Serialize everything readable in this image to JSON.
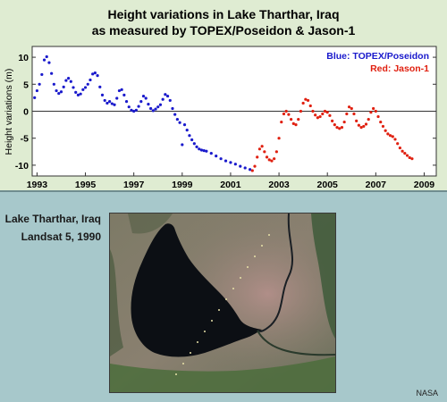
{
  "header": {
    "title_line1": "Height variations in Lake Tharthar, Iraq",
    "title_line2": "as measured by TOPEX/Poseidon & Jason-1"
  },
  "chart_data": {
    "type": "scatter",
    "ylabel": "Height variations (m)",
    "xlabel": "",
    "xlim": [
      1992.8,
      2009.5
    ],
    "ylim": [
      -12,
      12
    ],
    "x_ticks": [
      1993,
      1995,
      1997,
      1999,
      2001,
      2003,
      2005,
      2007,
      2009
    ],
    "y_ticks": [
      10,
      5,
      0,
      -5,
      -10
    ],
    "zero_line": true,
    "legend_position": "top-right",
    "series": [
      {
        "name": "Blue: TOPEX/Poseidon",
        "color": "#1a1acc",
        "points": [
          [
            1992.9,
            2.5
          ],
          [
            1993.0,
            3.8
          ],
          [
            1993.1,
            5.0
          ],
          [
            1993.2,
            6.8
          ],
          [
            1993.3,
            9.5
          ],
          [
            1993.4,
            10.1
          ],
          [
            1993.5,
            9.0
          ],
          [
            1993.6,
            7.0
          ],
          [
            1993.7,
            5.0
          ],
          [
            1993.8,
            3.8
          ],
          [
            1993.9,
            3.3
          ],
          [
            1994.0,
            3.6
          ],
          [
            1994.1,
            4.5
          ],
          [
            1994.2,
            5.7
          ],
          [
            1994.3,
            6.1
          ],
          [
            1994.4,
            5.5
          ],
          [
            1994.5,
            4.4
          ],
          [
            1994.6,
            3.5
          ],
          [
            1994.7,
            3.0
          ],
          [
            1994.8,
            3.2
          ],
          [
            1994.9,
            4.0
          ],
          [
            1995.0,
            4.4
          ],
          [
            1995.1,
            5.0
          ],
          [
            1995.2,
            5.8
          ],
          [
            1995.3,
            6.9
          ],
          [
            1995.4,
            7.1
          ],
          [
            1995.5,
            6.6
          ],
          [
            1995.6,
            4.5
          ],
          [
            1995.7,
            3.0
          ],
          [
            1995.8,
            2.0
          ],
          [
            1995.9,
            1.5
          ],
          [
            1996.0,
            1.8
          ],
          [
            1996.1,
            1.4
          ],
          [
            1996.2,
            1.2
          ],
          [
            1996.3,
            2.4
          ],
          [
            1996.4,
            3.8
          ],
          [
            1996.5,
            4.0
          ],
          [
            1996.6,
            3.0
          ],
          [
            1996.7,
            1.8
          ],
          [
            1996.8,
            0.8
          ],
          [
            1996.9,
            0.2
          ],
          [
            1997.0,
            0.0
          ],
          [
            1997.1,
            0.2
          ],
          [
            1997.2,
            0.9
          ],
          [
            1997.3,
            1.8
          ],
          [
            1997.4,
            2.8
          ],
          [
            1997.5,
            2.4
          ],
          [
            1997.6,
            1.3
          ],
          [
            1997.7,
            0.5
          ],
          [
            1997.8,
            0.1
          ],
          [
            1997.9,
            0.4
          ],
          [
            1998.0,
            0.8
          ],
          [
            1998.1,
            1.2
          ],
          [
            1998.2,
            2.2
          ],
          [
            1998.3,
            3.1
          ],
          [
            1998.4,
            2.8
          ],
          [
            1998.5,
            2.0
          ],
          [
            1998.6,
            0.5
          ],
          [
            1998.7,
            -0.6
          ],
          [
            1998.8,
            -1.5
          ],
          [
            1998.9,
            -2.1
          ],
          [
            1999.0,
            -6.2
          ],
          [
            1999.1,
            -2.5
          ],
          [
            1999.2,
            -3.5
          ],
          [
            1999.3,
            -4.5
          ],
          [
            1999.4,
            -5.3
          ],
          [
            1999.5,
            -6.0
          ],
          [
            1999.6,
            -6.6
          ],
          [
            1999.7,
            -7.0
          ],
          [
            1999.8,
            -7.2
          ],
          [
            1999.9,
            -7.3
          ],
          [
            2000.0,
            -7.4
          ],
          [
            2000.2,
            -7.8
          ],
          [
            2000.4,
            -8.3
          ],
          [
            2000.6,
            -8.8
          ],
          [
            2000.8,
            -9.2
          ],
          [
            2001.0,
            -9.5
          ],
          [
            2001.2,
            -9.8
          ],
          [
            2001.4,
            -10.2
          ],
          [
            2001.6,
            -10.5
          ],
          [
            2001.8,
            -10.8
          ]
        ]
      },
      {
        "name": "Red: Jason-1",
        "color": "#e02010",
        "points": [
          [
            2001.9,
            -11.0
          ],
          [
            2002.0,
            -10.2
          ],
          [
            2002.1,
            -8.5
          ],
          [
            2002.2,
            -7.0
          ],
          [
            2002.3,
            -6.5
          ],
          [
            2002.4,
            -7.5
          ],
          [
            2002.5,
            -8.5
          ],
          [
            2002.6,
            -9.0
          ],
          [
            2002.7,
            -9.2
          ],
          [
            2002.8,
            -8.8
          ],
          [
            2002.9,
            -7.5
          ],
          [
            2003.0,
            -5.0
          ],
          [
            2003.1,
            -2.0
          ],
          [
            2003.2,
            -0.5
          ],
          [
            2003.3,
            0.0
          ],
          [
            2003.4,
            -0.6
          ],
          [
            2003.5,
            -1.5
          ],
          [
            2003.6,
            -2.3
          ],
          [
            2003.7,
            -2.5
          ],
          [
            2003.8,
            -1.5
          ],
          [
            2003.9,
            0.0
          ],
          [
            2004.0,
            1.5
          ],
          [
            2004.1,
            2.2
          ],
          [
            2004.2,
            2.0
          ],
          [
            2004.3,
            1.0
          ],
          [
            2004.4,
            0.0
          ],
          [
            2004.5,
            -0.7
          ],
          [
            2004.6,
            -1.2
          ],
          [
            2004.7,
            -1.0
          ],
          [
            2004.8,
            -0.5
          ],
          [
            2004.9,
            0.0
          ],
          [
            2005.0,
            -0.2
          ],
          [
            2005.1,
            -0.8
          ],
          [
            2005.2,
            -1.8
          ],
          [
            2005.3,
            -2.5
          ],
          [
            2005.4,
            -3.0
          ],
          [
            2005.5,
            -3.2
          ],
          [
            2005.6,
            -3.0
          ],
          [
            2005.7,
            -2.0
          ],
          [
            2005.8,
            -0.5
          ],
          [
            2005.9,
            0.8
          ],
          [
            2006.0,
            0.5
          ],
          [
            2006.1,
            -0.5
          ],
          [
            2006.2,
            -1.8
          ],
          [
            2006.3,
            -2.6
          ],
          [
            2006.4,
            -3.0
          ],
          [
            2006.5,
            -2.8
          ],
          [
            2006.6,
            -2.4
          ],
          [
            2006.7,
            -1.5
          ],
          [
            2006.8,
            -0.2
          ],
          [
            2006.9,
            0.5
          ],
          [
            2007.0,
            0.0
          ],
          [
            2007.1,
            -1.0
          ],
          [
            2007.2,
            -2.0
          ],
          [
            2007.3,
            -2.8
          ],
          [
            2007.4,
            -3.6
          ],
          [
            2007.5,
            -4.2
          ],
          [
            2007.6,
            -4.5
          ],
          [
            2007.7,
            -4.7
          ],
          [
            2007.8,
            -5.2
          ],
          [
            2007.9,
            -6.0
          ],
          [
            2008.0,
            -6.8
          ],
          [
            2008.1,
            -7.4
          ],
          [
            2008.2,
            -7.8
          ],
          [
            2008.3,
            -8.2
          ],
          [
            2008.4,
            -8.6
          ],
          [
            2008.5,
            -8.8
          ]
        ]
      }
    ]
  },
  "photo": {
    "caption_line1": "Lake Tharthar, Iraq",
    "caption_line2": "Landsat 5, 1990"
  },
  "credit": "NASA"
}
